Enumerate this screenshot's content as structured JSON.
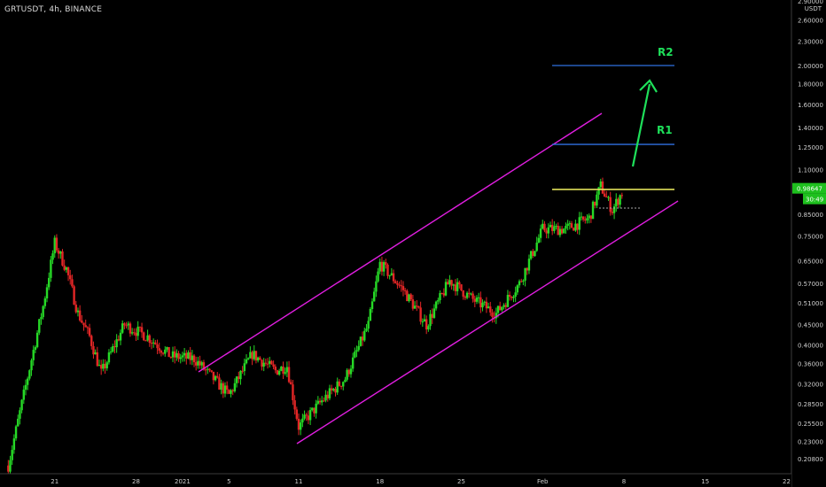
{
  "header": {
    "symbol_label": "GRTUSDT, 4h, BINANCE"
  },
  "colors": {
    "background": "#000000",
    "bull": "#26d926",
    "bear": "#e32626",
    "channel": "#e01ee0",
    "level": "#2f6fe0",
    "yellow_level": "#e0e05a",
    "arrow": "#1ee05a",
    "price_tag": "#1ec01e"
  },
  "chart_data": {
    "type": "candlestick",
    "yscale": "log",
    "unit_label": "USDT",
    "ylim": [
      0.19,
      2.9
    ],
    "yticks": [
      "2.90000",
      "2.60000",
      "2.30000",
      "2.00000",
      "1.80000",
      "1.60000",
      "1.40000",
      "1.25000",
      "1.10000",
      "0.98647",
      "0.85000",
      "0.75000",
      "0.65000",
      "0.57000",
      "0.51000",
      "0.45000",
      "0.40000",
      "0.36000",
      "0.32000",
      "0.28500",
      "0.25500",
      "0.23000",
      "0.20800"
    ],
    "xticks": [
      "21",
      "28",
      "2021",
      "5",
      "11",
      "18",
      "25",
      "Feb",
      "8",
      "15",
      "22"
    ],
    "current_price": "0.98647",
    "countdown": "30:49",
    "close_series_approx": [
      {
        "date": "Dec 17",
        "value": 0.2
      },
      {
        "date": "Dec 20",
        "value": 0.5
      },
      {
        "date": "Dec 21",
        "value": 0.72
      },
      {
        "date": "Dec 22",
        "value": 0.62
      },
      {
        "date": "Dec 23",
        "value": 0.48
      },
      {
        "date": "Dec 24",
        "value": 0.42
      },
      {
        "date": "Dec 25",
        "value": 0.34
      },
      {
        "date": "Dec 27",
        "value": 0.45
      },
      {
        "date": "Dec 29",
        "value": 0.42
      },
      {
        "date": "Dec 31",
        "value": 0.375
      },
      {
        "date": "Jan 2",
        "value": 0.37
      },
      {
        "date": "Jan 3",
        "value": 0.345
      },
      {
        "date": "Jan 5",
        "value": 0.3
      },
      {
        "date": "Jan 7",
        "value": 0.38
      },
      {
        "date": "Jan 9",
        "value": 0.345
      },
      {
        "date": "Jan 10",
        "value": 0.355
      },
      {
        "date": "Jan 11",
        "value": 0.25
      },
      {
        "date": "Jan 13",
        "value": 0.29
      },
      {
        "date": "Jan 15",
        "value": 0.33
      },
      {
        "date": "Jan 17",
        "value": 0.45
      },
      {
        "date": "Jan 18",
        "value": 0.64
      },
      {
        "date": "Jan 20",
        "value": 0.55
      },
      {
        "date": "Jan 22",
        "value": 0.45
      },
      {
        "date": "Jan 24",
        "value": 0.58
      },
      {
        "date": "Jan 26",
        "value": 0.52
      },
      {
        "date": "Jan 28",
        "value": 0.48
      },
      {
        "date": "Jan 30",
        "value": 0.57
      },
      {
        "date": "Feb 1",
        "value": 0.78
      },
      {
        "date": "Feb 3",
        "value": 0.78
      },
      {
        "date": "Feb 5",
        "value": 0.83
      },
      {
        "date": "Feb 6",
        "value": 1.0
      },
      {
        "date": "Feb 7",
        "value": 0.87
      },
      {
        "date": "Feb 8",
        "value": 0.98647
      }
    ],
    "annotations": [
      {
        "label": "R2",
        "value": 2.0
      },
      {
        "label": "R1",
        "value": 1.27
      },
      {
        "label": "",
        "value": 0.98
      }
    ]
  }
}
